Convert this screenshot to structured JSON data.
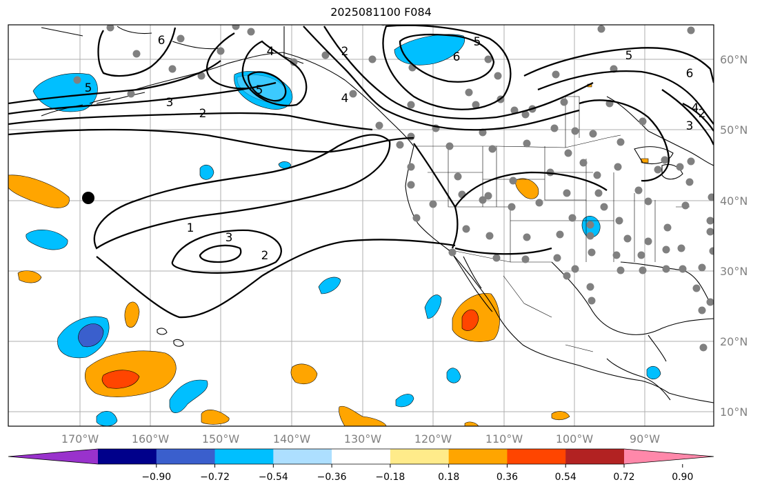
{
  "title": "2025081100 F084",
  "map": {
    "lon_labels": [
      "170°W",
      "160°W",
      "150°W",
      "140°W",
      "130°W",
      "120°W",
      "110°W",
      "100°W",
      "90°W"
    ],
    "lat_labels": [
      "60°N",
      "50°N",
      "40°N",
      "30°N",
      "20°N",
      "10°N"
    ],
    "gridlines": true,
    "contour_labels": [
      "6",
      "2",
      "4",
      "5",
      "6",
      "5",
      "6",
      "3",
      "2",
      "5",
      "3",
      "2",
      "4",
      "3",
      "1",
      "3",
      "2",
      "5",
      "4"
    ]
  },
  "colorbar": {
    "tick_labels": [
      "−0.90",
      "−0.72",
      "−0.54",
      "−0.36",
      "−0.18",
      "0.18",
      "0.36",
      "0.54",
      "0.72",
      "0.90"
    ],
    "colors": [
      "#9932CC",
      "#00008B",
      "#3A5FCD",
      "#00BFFF",
      "#ADDFFF",
      "#FFFFFF",
      "#FFEB8A",
      "#FFA500",
      "#FF4500",
      "#B22222",
      "#FF88AA"
    ],
    "extend": "both"
  },
  "colors": {
    "land_outline": "#000000",
    "station_dot": "#808080",
    "grid": "#999999"
  }
}
